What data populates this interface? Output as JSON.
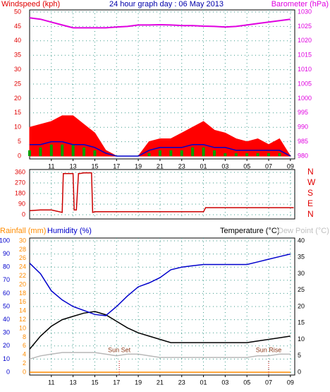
{
  "chart_data": [
    {
      "type": "combo",
      "title": "24 hour graph day : 06 May 2013",
      "ylabel": "Windspeed (kph)",
      "y2label": "Barometer (hPa)",
      "x": [
        0,
        1,
        2,
        3,
        4,
        5,
        6,
        7,
        8,
        9,
        10,
        11,
        12,
        13,
        14,
        15,
        16,
        17,
        18,
        19,
        20,
        21,
        22,
        23,
        24
      ],
      "xlim": [
        0,
        24.4
      ],
      "xticks": [
        {
          "value": 2,
          "label": "11"
        },
        {
          "value": 4,
          "label": "13"
        },
        {
          "value": 6,
          "label": "15"
        },
        {
          "value": 8,
          "label": "17"
        },
        {
          "value": 10,
          "label": "19"
        },
        {
          "value": 12,
          "label": "21"
        },
        {
          "value": 14,
          "label": "23"
        },
        {
          "value": 16,
          "label": "01"
        },
        {
          "value": 18,
          "label": "03"
        },
        {
          "value": 20,
          "label": "05"
        },
        {
          "value": 22,
          "label": "07"
        },
        {
          "value": 24,
          "label": "09"
        }
      ],
      "ylim": [
        0,
        50
      ],
      "yticks": [
        0,
        5,
        10,
        15,
        20,
        25,
        30,
        35,
        40,
        45,
        50
      ],
      "y2lim": [
        980,
        1030
      ],
      "y2ticks": [
        980,
        985,
        990,
        995,
        1000,
        1005,
        1010,
        1015,
        1020,
        1025,
        1030
      ],
      "grid": true,
      "series": [
        {
          "type": "area",
          "color": "#ff0000",
          "values": [
            10,
            11,
            12,
            14,
            14,
            11,
            8,
            2,
            0,
            0,
            0,
            5,
            6,
            6,
            8,
            10,
            12,
            9,
            8,
            6,
            5,
            6,
            4,
            6,
            0
          ]
        },
        {
          "type": "bar",
          "color": "#00a000",
          "values": [
            2,
            3,
            4,
            4,
            4,
            3,
            2,
            0,
            0,
            0,
            0,
            1,
            2,
            2,
            2,
            3,
            3,
            2,
            1,
            1,
            1,
            1,
            1,
            1,
            0
          ]
        },
        {
          "type": "line",
          "color": "#0000cc",
          "values": [
            4,
            4,
            5,
            5,
            4,
            4,
            3,
            1,
            0,
            0,
            0,
            2,
            3,
            3,
            3,
            4,
            4,
            3,
            3,
            2,
            2,
            2,
            2,
            2,
            0
          ]
        },
        {
          "type": "line",
          "axis": "y2",
          "color": "#e000e0",
          "values": [
            1028,
            1027.5,
            1026.5,
            1025.5,
            1024.5,
            1024.5,
            1024.5,
            1024.5,
            1024.8,
            1025,
            1025.5,
            1025.5,
            1025.6,
            1025.5,
            1025.3,
            1025.3,
            1025.1,
            1025,
            1024.8,
            1025,
            1025.5,
            1026,
            1026.5,
            1027,
            1027.5
          ]
        }
      ]
    },
    {
      "type": "combo",
      "x": [
        0,
        1,
        2,
        3,
        3.1,
        3.5,
        4,
        4.1,
        4.3,
        4.5,
        4.6,
        5,
        5.7,
        5.8,
        6,
        8,
        12,
        16,
        16.2,
        20,
        24.3
      ],
      "xlim": [
        0,
        24.4
      ],
      "ylim": [
        0,
        360
      ],
      "yticks": [
        0,
        90,
        180,
        270,
        360
      ],
      "y2lim": [
        0,
        360
      ],
      "y2ticks": [
        {
          "value": 0,
          "label": "N"
        },
        {
          "value": 90,
          "label": "E"
        },
        {
          "value": 180,
          "label": "S"
        },
        {
          "value": 270,
          "label": "W"
        },
        {
          "value": 360,
          "label": "N"
        }
      ],
      "grid": true,
      "series": [
        {
          "type": "line",
          "color": "#cc0000",
          "values": [
            35,
            40,
            40,
            20,
            350,
            350,
            350,
            40,
            40,
            350,
            350,
            355,
            355,
            20,
            25,
            25,
            25,
            25,
            60,
            60,
            60
          ]
        }
      ]
    },
    {
      "type": "combo",
      "ylabel": "Humidity (%)",
      "y3label": "Rainfall (mm)",
      "y2label": "Temperature (°C)",
      "dewlabel": "Dew Point (°C)",
      "x": [
        0,
        1,
        2,
        3,
        4,
        5,
        6,
        7,
        8,
        9,
        10,
        11,
        12,
        13,
        14,
        15,
        16,
        17,
        18,
        19,
        20,
        21,
        22,
        23,
        24
      ],
      "xlim": [
        0,
        24.4
      ],
      "xticks": [
        {
          "value": 2,
          "label": "11"
        },
        {
          "value": 4,
          "label": "13"
        },
        {
          "value": 6,
          "label": "15"
        },
        {
          "value": 8,
          "label": "17"
        },
        {
          "value": 10,
          "label": "19"
        },
        {
          "value": 12,
          "label": "21"
        },
        {
          "value": 14,
          "label": "23"
        },
        {
          "value": 16,
          "label": "01"
        },
        {
          "value": 18,
          "label": "03"
        },
        {
          "value": 20,
          "label": "05"
        },
        {
          "value": 22,
          "label": "07"
        },
        {
          "value": 24,
          "label": "09"
        }
      ],
      "ylim": [
        0,
        100
      ],
      "yticks": [
        0,
        10,
        20,
        30,
        40,
        50,
        60,
        70,
        80,
        90,
        100
      ],
      "y3lim": [
        0,
        30
      ],
      "y3ticks": [
        0,
        2,
        4,
        6,
        8,
        10,
        12,
        14,
        16,
        18,
        20,
        22,
        24,
        26,
        28,
        30
      ],
      "y2lim": [
        0,
        40
      ],
      "y2ticks": [
        0,
        5,
        10,
        15,
        20,
        25,
        30,
        35,
        40
      ],
      "grid": true,
      "annotations": [
        {
          "x": 8.25,
          "text": "Sun Set"
        },
        {
          "x": 22,
          "text": "Sun Rise"
        }
      ],
      "series": [
        {
          "type": "line",
          "axis": "y3",
          "color": "#ff8c00",
          "values": [
            0,
            0,
            0,
            0,
            0,
            0,
            0,
            0,
            0,
            0,
            0,
            0,
            0,
            0,
            0,
            0,
            0,
            0,
            0,
            0,
            0,
            0,
            0,
            0,
            0
          ]
        },
        {
          "type": "line",
          "axis": "y2",
          "color": "#b8b8b8",
          "values": [
            4,
            5,
            5.5,
            6,
            6,
            6,
            6,
            5.5,
            5,
            5.5,
            5.5,
            5,
            4.5,
            4.5,
            4.5,
            4.5,
            4.5,
            4.5,
            4.5,
            4.5,
            4.5,
            5,
            5,
            5.5,
            5.5
          ]
        },
        {
          "type": "line",
          "axis": "y2",
          "color": "#000000",
          "values": [
            7,
            11,
            14,
            16,
            17,
            18,
            18.5,
            17.5,
            15.5,
            13.5,
            12,
            11,
            10,
            9,
            9,
            9,
            9,
            9,
            9,
            9,
            9,
            9.5,
            10,
            10.5,
            11
          ]
        },
        {
          "type": "line",
          "color": "#0000cc",
          "values": [
            83,
            75,
            62,
            55,
            50,
            47,
            44,
            43,
            50,
            58,
            65,
            68,
            72,
            78,
            80,
            81,
            82,
            82,
            82,
            82,
            82,
            84,
            86,
            88,
            90
          ]
        }
      ]
    }
  ]
}
